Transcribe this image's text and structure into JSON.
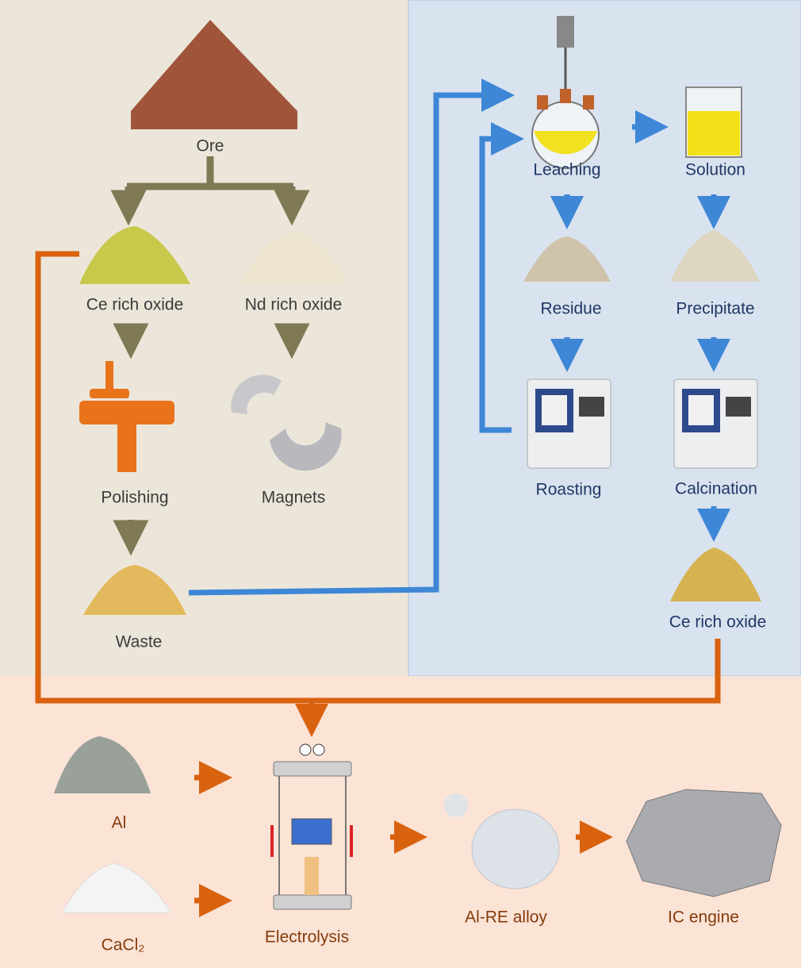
{
  "nodes": [
    {
      "label": "Ore"
    },
    {
      "label": "Ce rich oxide"
    },
    {
      "label": "Nd rich oxide"
    },
    {
      "label": "Polishing"
    },
    {
      "label": "Magnets"
    },
    {
      "label": "Waste"
    },
    {
      "label": "Leaching"
    },
    {
      "label": "Solution"
    },
    {
      "label": "Residue"
    },
    {
      "label": "Precipitate"
    },
    {
      "label": "Roasting"
    },
    {
      "label": "Calcination"
    },
    {
      "label": "Ce rich oxide"
    },
    {
      "label": "Al"
    },
    {
      "label": "CaCl₂"
    },
    {
      "label": "Electrolysis"
    },
    {
      "label": "Al-RE alloy"
    },
    {
      "label": "IC engine"
    }
  ]
}
